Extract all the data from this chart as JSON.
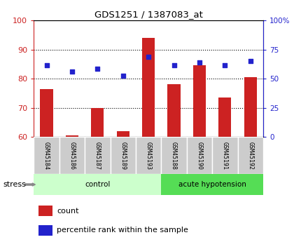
{
  "title": "GDS1251 / 1387083_at",
  "samples": [
    "GSM45184",
    "GSM45186",
    "GSM45187",
    "GSM45189",
    "GSM45193",
    "GSM45188",
    "GSM45190",
    "GSM45191",
    "GSM45192"
  ],
  "bar_values": [
    76.5,
    60.5,
    70.0,
    62.0,
    94.0,
    78.0,
    84.5,
    73.5,
    80.5
  ],
  "dot_values_left_scale": [
    84.5,
    82.5,
    83.5,
    81.0,
    87.5,
    84.5,
    85.5,
    84.5,
    86.0
  ],
  "bar_color": "#cc2222",
  "dot_color": "#2222cc",
  "ylim_left": [
    60,
    100
  ],
  "ylim_right": [
    0,
    100
  ],
  "yticks_left": [
    60,
    70,
    80,
    90,
    100
  ],
  "ytick_labels_left": [
    "60",
    "70",
    "80",
    "90",
    "100"
  ],
  "yticks_right_vals": [
    0,
    25,
    50,
    75,
    100
  ],
  "ytick_labels_right": [
    "0",
    "25",
    "50",
    "75",
    "100%"
  ],
  "grid_yticks": [
    70,
    80,
    90
  ],
  "groups": [
    {
      "label": "control",
      "start": 0,
      "end": 5,
      "color": "#ccffcc"
    },
    {
      "label": "acute hypotension",
      "start": 5,
      "end": 9,
      "color": "#55dd55"
    }
  ],
  "stress_label": "stress",
  "legend_count_label": "count",
  "legend_pct_label": "percentile rank within the sample",
  "left_axis_color": "#cc2222",
  "right_axis_color": "#2222cc",
  "xlabel_area_color": "#cccccc",
  "plot_bg_color": "white"
}
